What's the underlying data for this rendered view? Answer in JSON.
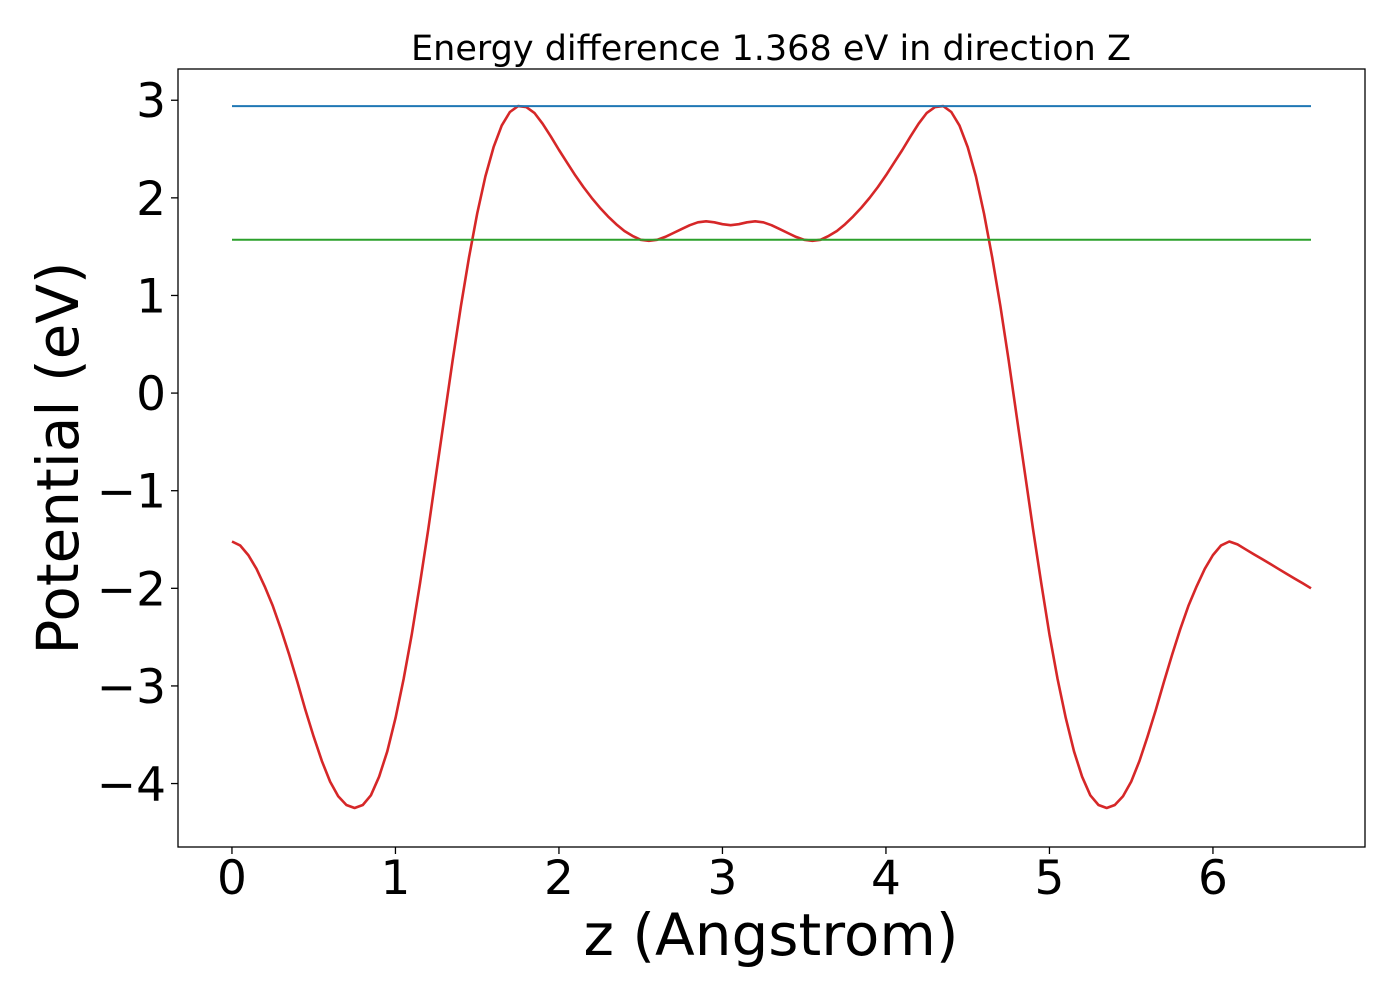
{
  "chart_data": {
    "type": "line",
    "title": "Energy difference 1.368 eV in direction Z",
    "xlabel": "z (Angstrom)",
    "ylabel": "Potential (eV)",
    "xlim": [
      -0.33,
      6.93
    ],
    "ylim": [
      -4.65,
      3.32
    ],
    "xticks": [
      0,
      1,
      2,
      3,
      4,
      5,
      6
    ],
    "xtick_labels": [
      "0",
      "1",
      "2",
      "3",
      "4",
      "5",
      "6"
    ],
    "yticks": [
      3,
      2,
      1,
      0,
      -1,
      -2,
      -3,
      -4
    ],
    "ytick_labels": [
      "3",
      "2",
      "1",
      "0",
      "−1",
      "−2",
      "−3",
      "−4"
    ],
    "grid": false,
    "series": [
      {
        "color": "#d62728",
        "x": [
          0,
          0.05,
          0.1,
          0.15,
          0.2,
          0.25,
          0.3,
          0.35,
          0.4,
          0.45,
          0.5,
          0.55,
          0.6,
          0.65,
          0.7,
          0.75,
          0.8,
          0.85,
          0.9,
          0.95,
          1.0,
          1.05,
          1.1,
          1.15,
          1.2,
          1.25,
          1.3,
          1.35,
          1.4,
          1.45,
          1.5,
          1.55,
          1.6,
          1.65,
          1.7,
          1.75,
          1.8,
          1.85,
          1.9,
          1.95,
          2.0,
          2.05,
          2.1,
          2.15,
          2.2,
          2.25,
          2.3,
          2.35,
          2.4,
          2.45,
          2.5,
          2.55,
          2.6,
          2.65,
          2.7,
          2.75,
          2.8,
          2.85,
          2.9,
          2.95,
          3.0,
          3.05,
          3.1,
          3.15,
          3.2,
          3.25,
          3.3,
          3.35,
          3.4,
          3.45,
          3.5,
          3.55,
          3.6,
          3.65,
          3.7,
          3.75,
          3.8,
          3.85,
          3.9,
          3.95,
          4.0,
          4.05,
          4.1,
          4.15,
          4.2,
          4.25,
          4.3,
          4.35,
          4.4,
          4.45,
          4.5,
          4.55,
          4.6,
          4.65,
          4.7,
          4.75,
          4.8,
          4.85,
          4.9,
          4.95,
          5.0,
          5.05,
          5.1,
          5.15,
          5.2,
          5.25,
          5.3,
          5.35,
          5.4,
          5.45,
          5.5,
          5.55,
          5.6,
          5.65,
          5.7,
          5.75,
          5.8,
          5.85,
          5.9,
          5.95,
          6.0,
          6.05,
          6.1,
          6.15,
          6.2,
          6.25,
          6.3,
          6.35,
          6.4,
          6.45,
          6.5,
          6.55,
          6.6
        ],
        "y": [
          -1.52,
          -1.56,
          -1.66,
          -1.8,
          -1.98,
          -2.18,
          -2.42,
          -2.68,
          -2.96,
          -3.25,
          -3.52,
          -3.77,
          -3.98,
          -4.13,
          -4.22,
          -4.25,
          -4.22,
          -4.12,
          -3.93,
          -3.67,
          -3.33,
          -2.93,
          -2.47,
          -1.95,
          -1.4,
          -0.82,
          -0.24,
          0.34,
          0.89,
          1.39,
          1.84,
          2.22,
          2.52,
          2.74,
          2.88,
          2.94,
          2.93,
          2.87,
          2.76,
          2.63,
          2.49,
          2.36,
          2.23,
          2.11,
          2.0,
          1.9,
          1.81,
          1.73,
          1.66,
          1.61,
          1.57,
          1.56,
          1.57,
          1.6,
          1.64,
          1.68,
          1.72,
          1.75,
          1.76,
          1.75,
          1.73,
          1.72,
          1.73,
          1.75,
          1.76,
          1.75,
          1.72,
          1.68,
          1.64,
          1.6,
          1.57,
          1.56,
          1.57,
          1.61,
          1.66,
          1.73,
          1.81,
          1.9,
          2.0,
          2.11,
          2.23,
          2.36,
          2.49,
          2.63,
          2.76,
          2.87,
          2.93,
          2.94,
          2.88,
          2.74,
          2.52,
          2.22,
          1.84,
          1.39,
          0.89,
          0.34,
          -0.24,
          -0.82,
          -1.4,
          -1.95,
          -2.47,
          -2.93,
          -3.33,
          -3.67,
          -3.93,
          -4.12,
          -4.22,
          -4.25,
          -4.22,
          -4.13,
          -3.98,
          -3.77,
          -3.52,
          -3.25,
          -2.96,
          -2.68,
          -2.42,
          -2.18,
          -1.98,
          -1.8,
          -1.66,
          -1.56,
          -1.52,
          -1.55,
          -1.6,
          -1.65,
          -1.7,
          -1.75,
          -1.8,
          -1.85,
          -1.9,
          -1.95,
          -2.0
        ]
      },
      {
        "color": "#1f77b4",
        "x": [
          0,
          6.6
        ],
        "y": [
          2.94,
          2.94
        ]
      },
      {
        "color": "#2ca02c",
        "x": [
          0,
          6.6
        ],
        "y": [
          1.57,
          1.57
        ]
      }
    ]
  }
}
